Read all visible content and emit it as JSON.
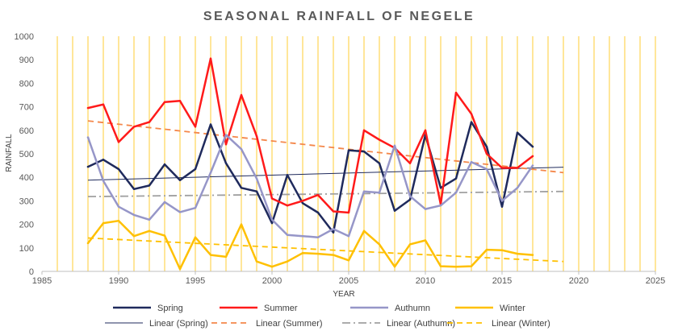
{
  "chart_data": {
    "type": "line",
    "title": "SEASONAL RAINFALL OF NEGELE",
    "xlabel": "YEAR",
    "ylabel": "RAINFALL",
    "xlim": [
      1985,
      2025
    ],
    "ylim": [
      0,
      1000
    ],
    "x_ticks": [
      "1985",
      "1990",
      "1995",
      "2000",
      "2005",
      "2010",
      "2015",
      "2020",
      "2025"
    ],
    "y_ticks": [
      "0",
      "100",
      "200",
      "300",
      "400",
      "500",
      "600",
      "700",
      "800",
      "900",
      "1000"
    ],
    "grid": "vertical, every year",
    "grid_color": "#FFC000",
    "legend_position": "bottom",
    "x": [
      1988,
      1989,
      1990,
      1991,
      1992,
      1993,
      1994,
      1995,
      1996,
      1997,
      1998,
      1999,
      2000,
      2001,
      2002,
      2003,
      2004,
      2005,
      2006,
      2007,
      2008,
      2009,
      2010,
      2011,
      2012,
      2013,
      2014,
      2015,
      2016,
      2017
    ],
    "series": [
      {
        "name": "Spring",
        "color": "#1F2A5C",
        "values": [
          445,
          475,
          435,
          350,
          365,
          455,
          388,
          435,
          625,
          460,
          355,
          340,
          205,
          410,
          290,
          250,
          165,
          515,
          510,
          460,
          258,
          305,
          580,
          355,
          395,
          635,
          530,
          275,
          590,
          530
        ]
      },
      {
        "name": "Summer",
        "color": "#FF1A1A",
        "values": [
          695,
          710,
          550,
          615,
          635,
          720,
          725,
          615,
          905,
          540,
          750,
          575,
          310,
          280,
          300,
          325,
          255,
          250,
          600,
          560,
          525,
          460,
          600,
          285,
          760,
          670,
          500,
          440,
          440,
          490
        ]
      },
      {
        "name": "Authumn",
        "color": "#9696C8",
        "values": [
          570,
          385,
          275,
          240,
          220,
          295,
          252,
          270,
          420,
          580,
          520,
          395,
          220,
          155,
          150,
          145,
          180,
          150,
          340,
          335,
          535,
          320,
          265,
          280,
          335,
          465,
          435,
          300,
          355,
          450
        ]
      },
      {
        "name": "Winter",
        "color": "#FFC000",
        "values": [
          120,
          205,
          215,
          150,
          172,
          152,
          10,
          145,
          70,
          62,
          200,
          42,
          20,
          42,
          78,
          75,
          70,
          47,
          172,
          115,
          20,
          115,
          132,
          22,
          20,
          22,
          92,
          90,
          75,
          70
        ]
      }
    ],
    "trendlines": [
      {
        "name": "Linear (Spring)",
        "color": "#1F2A5C",
        "dash": "solid",
        "x": [
          1988,
          2019
        ],
        "values": [
          388,
          443
        ]
      },
      {
        "name": "Linear (Summer)",
        "color": "#F4874A",
        "dash": "dash",
        "x": [
          1988,
          2019
        ],
        "values": [
          640,
          420
        ]
      },
      {
        "name": "Linear (Authumn)",
        "color": "#A0A0A0",
        "dash": "dashdot",
        "x": [
          1988,
          2019
        ],
        "values": [
          318,
          340
        ]
      },
      {
        "name": "Linear (Winter)",
        "color": "#FFC000",
        "dash": "dash",
        "x": [
          1988,
          2019
        ],
        "values": [
          142,
          42
        ]
      }
    ]
  }
}
